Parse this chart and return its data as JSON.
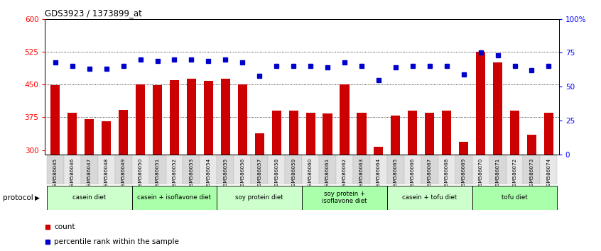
{
  "title": "GDS3923 / 1373899_at",
  "samples": [
    "GSM586045",
    "GSM586046",
    "GSM586047",
    "GSM586048",
    "GSM586049",
    "GSM586050",
    "GSM586051",
    "GSM586052",
    "GSM586053",
    "GSM586054",
    "GSM586055",
    "GSM586056",
    "GSM586057",
    "GSM586058",
    "GSM586059",
    "GSM586060",
    "GSM586061",
    "GSM586062",
    "GSM586063",
    "GSM586064",
    "GSM586065",
    "GSM586066",
    "GSM586067",
    "GSM586068",
    "GSM586069",
    "GSM586070",
    "GSM586071",
    "GSM586072",
    "GSM586073",
    "GSM586074"
  ],
  "counts": [
    448,
    385,
    370,
    365,
    391,
    450,
    449,
    459,
    463,
    458,
    463,
    450,
    338,
    390,
    390,
    385,
    383,
    450,
    385,
    308,
    378,
    390,
    385,
    390,
    318,
    525,
    500,
    390,
    335,
    385
  ],
  "percentiles": [
    68,
    65,
    63,
    63,
    65,
    70,
    69,
    70,
    70,
    69,
    70,
    68,
    58,
    65,
    65,
    65,
    64,
    68,
    65,
    55,
    64,
    65,
    65,
    65,
    59,
    75,
    73,
    65,
    62,
    65
  ],
  "bar_color": "#cc0000",
  "dot_color": "#0000cc",
  "ylim_left": [
    290,
    600
  ],
  "ylim_right": [
    0,
    100
  ],
  "yticks_left": [
    300,
    375,
    450,
    525,
    600
  ],
  "yticks_right": [
    0,
    25,
    50,
    75,
    100
  ],
  "hlines": [
    375,
    450,
    525
  ],
  "protocols": [
    {
      "label": "casein diet",
      "start": 0,
      "end": 5,
      "color": "#ccffcc"
    },
    {
      "label": "casein + isoflavone diet",
      "start": 5,
      "end": 10,
      "color": "#aaffaa"
    },
    {
      "label": "soy protein diet",
      "start": 10,
      "end": 15,
      "color": "#ccffcc"
    },
    {
      "label": "soy protein +\nisoflavone diet",
      "start": 15,
      "end": 20,
      "color": "#aaffaa"
    },
    {
      "label": "casein + tofu diet",
      "start": 20,
      "end": 25,
      "color": "#ccffcc"
    },
    {
      "label": "tofu diet",
      "start": 25,
      "end": 30,
      "color": "#aaffaa"
    }
  ],
  "legend_count_label": "count",
  "legend_pct_label": "percentile rank within the sample"
}
